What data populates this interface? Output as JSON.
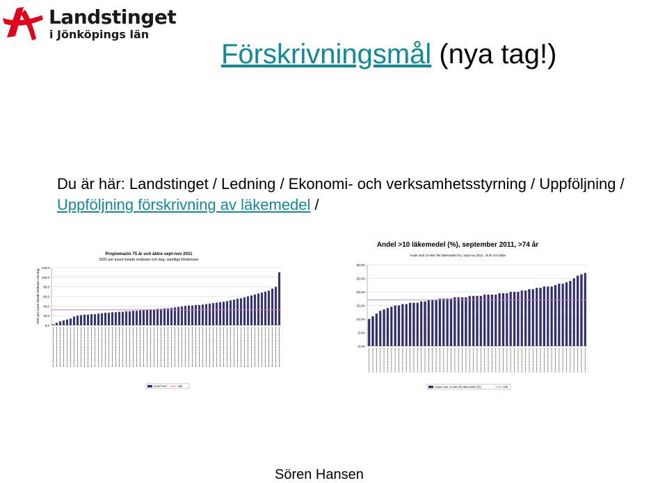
{
  "logo": {
    "name": "Landstinget",
    "subtitle": "i Jönköpings län",
    "colors": {
      "red": "#e2001a",
      "dark": "#1a1a1a"
    }
  },
  "title": {
    "link_text": "Förskrivningsmål",
    "rest": "(nya tag!)",
    "link_color": "#0f8a9a"
  },
  "breadcrumb": {
    "prefix": "Du är här: Landstinget / Ledning / Ekonomi- och verksamhetsstyrning / Uppföljning / ",
    "link_text": "Uppföljning förskrivning av läkemedel",
    "suffix": " /"
  },
  "footer": {
    "author": "Sören Hansen"
  },
  "chart_data": [
    {
      "type": "bar",
      "title": "Propiomazin 75 år och äldre sept-nov 2011",
      "subtitle": "DDD per tusen listade invånare och dag, samtliga förskrivare",
      "ylabel": "DDD per tusen listade invånare och dag",
      "ylim": [
        0,
        120
      ],
      "yticks": [
        "0,0",
        "20,0",
        "40,0",
        "60,0",
        "80,0",
        "100,0",
        "120,0"
      ],
      "target_line": 32,
      "bar_color": "#2e2e6e",
      "target_color": "#d070d0",
      "legend": [
        {
          "label": "DDD/TINO",
          "color": "#2e2e6e"
        },
        {
          "label": "Mål",
          "color": "#d070d0"
        }
      ],
      "values": [
        2,
        5,
        8,
        10,
        12,
        14,
        18,
        20,
        21,
        22,
        22,
        23,
        23,
        24,
        25,
        26,
        26,
        27,
        27,
        28,
        28,
        29,
        29,
        30,
        30,
        31,
        32,
        32,
        33,
        33,
        34,
        34,
        35,
        35,
        36,
        37,
        38,
        39,
        40,
        41,
        41,
        42,
        42,
        43,
        44,
        45,
        46,
        47,
        48,
        49,
        50,
        52,
        53,
        55,
        56,
        58,
        60,
        62,
        64,
        66,
        68,
        70,
        72,
        76,
        80,
        110
      ]
    },
    {
      "type": "bar",
      "title": "Andel >10 läkemedel (%), september 2011, >74 år",
      "subtitle": "Andel med 10 eller fler läkemedel (%), sept-nov 2011, 75 år och äldre",
      "ylim": [
        0,
        30
      ],
      "yticks": [
        "0,0%",
        "5,0%",
        "10,0%",
        "15,0%",
        "20,0%",
        "25,0%",
        "30,0%"
      ],
      "target_line": 17,
      "bar_color": "#2e2e6e",
      "target_color": "#d070d0",
      "legend": [
        {
          "label": "Andel med 10 eller fler läkemedel (%)",
          "color": "#2e2e6e"
        },
        {
          "label": "Mål",
          "color": "#d070d0"
        }
      ],
      "values": [
        10,
        11,
        12,
        13,
        13.5,
        14,
        14.5,
        15,
        15,
        15.5,
        15.5,
        16,
        16,
        16,
        16.5,
        16.5,
        17,
        17,
        17,
        17.5,
        17.5,
        17.5,
        17.5,
        18,
        18,
        18,
        18,
        18.5,
        18.5,
        18.5,
        18.5,
        19,
        19,
        19,
        19,
        19.5,
        19.5,
        19.5,
        20,
        20,
        20,
        20.5,
        20.5,
        21,
        21,
        21.5,
        21.5,
        22,
        22,
        22,
        22.5,
        23,
        23,
        23.5,
        24,
        25,
        26,
        26.5,
        27
      ]
    }
  ]
}
